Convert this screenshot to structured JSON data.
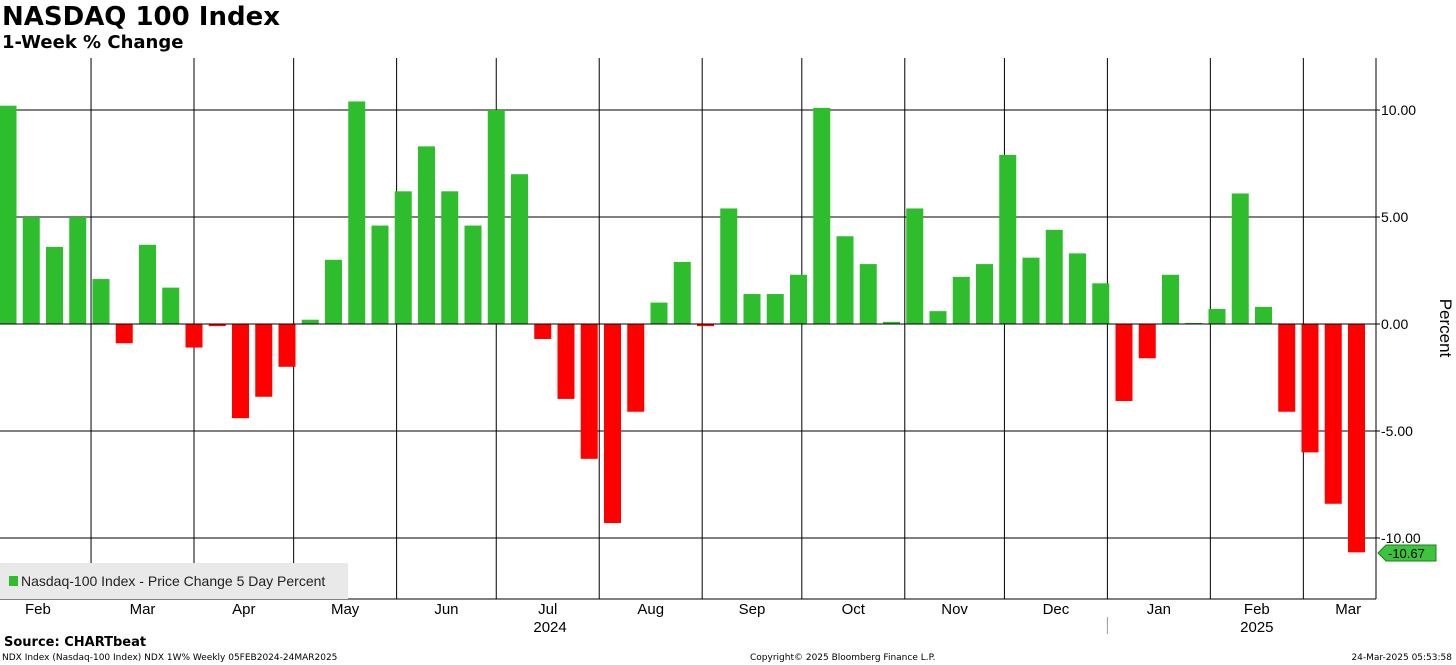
{
  "header": {
    "title": "NASDAQ 100 Index",
    "subtitle": "1-Week % Change"
  },
  "footer": {
    "source": "Source: CHARTbeat",
    "left": "NDX Index (Nasdaq-100 Index) NDX 1W% Weekly 05FEB2024-24MAR2025",
    "center": "Copyright© 2025 Bloomberg Finance L.P.",
    "right": "24-Mar-2025 05:53:58"
  },
  "colors": {
    "positive": "#2dbd2d",
    "negative": "#ff0000",
    "last_label_bg": "#3cc43c"
  },
  "chart_data": {
    "type": "bar",
    "title": "NASDAQ 100 Index",
    "subtitle": "1-Week % Change",
    "ylabel": "Percent",
    "ylim": [
      -12.5,
      12.5
    ],
    "yticks": [
      10,
      5,
      0,
      -5,
      -10
    ],
    "ytick_labels": [
      "10.00",
      "5.00",
      "0.00",
      "-5.00",
      "-10.00"
    ],
    "grid": true,
    "legend": {
      "position": "bottom-left",
      "entries": [
        "Nasdaq-100 Index - Price Change 5 Day Percent"
      ]
    },
    "last_value_label": "-10.67",
    "months": [
      "Feb",
      "Mar",
      "Apr",
      "May",
      "Jun",
      "Jul",
      "Aug",
      "Sep",
      "Oct",
      "Nov",
      "Dec",
      "Jan",
      "Feb",
      "Mar"
    ],
    "years": [
      "2024",
      "2025"
    ],
    "month_starts": [
      "2024-01-29",
      "2024-03-01",
      "2024-04-01",
      "2024-05-01",
      "2024-06-01",
      "2024-07-01",
      "2024-08-01",
      "2024-09-01",
      "2024-10-01",
      "2024-11-01",
      "2024-12-01",
      "2025-01-01",
      "2025-02-01",
      "2025-03-01",
      "2025-03-28"
    ],
    "series": [
      {
        "name": "Nasdaq-100 Index - Price Change 5 Day Percent",
        "x": [
          "2024-02-05",
          "2024-02-12",
          "2024-02-19",
          "2024-02-26",
          "2024-03-04",
          "2024-03-11",
          "2024-03-18",
          "2024-03-25",
          "2024-04-01",
          "2024-04-08",
          "2024-04-15",
          "2024-04-22",
          "2024-04-29",
          "2024-05-06",
          "2024-05-13",
          "2024-05-20",
          "2024-05-27",
          "2024-06-03",
          "2024-06-10",
          "2024-06-17",
          "2024-06-24",
          "2024-07-01",
          "2024-07-08",
          "2024-07-15",
          "2024-07-22",
          "2024-07-29",
          "2024-08-05",
          "2024-08-12",
          "2024-08-19",
          "2024-08-26",
          "2024-09-02",
          "2024-09-09",
          "2024-09-16",
          "2024-09-23",
          "2024-09-30",
          "2024-10-07",
          "2024-10-14",
          "2024-10-21",
          "2024-10-28",
          "2024-11-04",
          "2024-11-11",
          "2024-11-18",
          "2024-11-25",
          "2024-12-02",
          "2024-12-09",
          "2024-12-16",
          "2024-12-23",
          "2024-12-30",
          "2025-01-06",
          "2025-01-13",
          "2025-01-20",
          "2025-01-27",
          "2025-02-03",
          "2025-02-10",
          "2025-02-17",
          "2025-02-24",
          "2025-03-03",
          "2025-03-10",
          "2025-03-17"
        ],
        "values": [
          10.2,
          5.0,
          3.6,
          5.0,
          2.1,
          -0.9,
          3.7,
          1.7,
          -1.1,
          -0.1,
          -4.4,
          -3.4,
          -2.0,
          0.2,
          3.0,
          10.4,
          4.6,
          6.2,
          8.3,
          6.2,
          4.6,
          10.0,
          7.0,
          -0.7,
          -3.5,
          -6.3,
          -9.3,
          -4.1,
          1.0,
          2.9,
          -0.1,
          5.4,
          1.4,
          1.4,
          2.3,
          10.1,
          4.1,
          2.8,
          0.1,
          5.4,
          0.6,
          2.2,
          2.8,
          7.9,
          3.1,
          4.4,
          3.3,
          1.9,
          -3.6,
          -1.6,
          2.3,
          0.05,
          0.7,
          6.1,
          0.8,
          -4.1,
          -6.0,
          -8.4,
          -10.67
        ]
      }
    ]
  }
}
